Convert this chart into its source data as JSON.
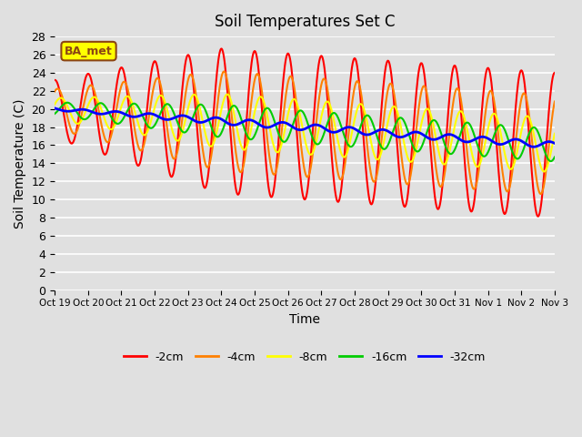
{
  "title": "Soil Temperatures Set C",
  "xlabel": "Time",
  "ylabel": "Soil Temperature (C)",
  "ylim": [
    0,
    28
  ],
  "yticks": [
    0,
    2,
    4,
    6,
    8,
    10,
    12,
    14,
    16,
    18,
    20,
    22,
    24,
    26,
    28
  ],
  "xtick_labels": [
    "Oct 19",
    "Oct 20",
    "Oct 21",
    "Oct 22",
    "Oct 23",
    "Oct 24",
    "Oct 25",
    "Oct 26",
    "Oct 27",
    "Oct 28",
    "Oct 29",
    "Oct 30",
    "Oct 31",
    "Nov 1",
    "Nov 2",
    "Nov 3"
  ],
  "legend_labels": [
    "-2cm",
    "-4cm",
    "-8cm",
    "-16cm",
    "-32cm"
  ],
  "legend_colors": [
    "#ff0000",
    "#ff8000",
    "#ffff00",
    "#00cc00",
    "#0000ff"
  ],
  "line_widths": [
    1.5,
    1.5,
    1.5,
    1.5,
    2.0
  ],
  "annotation_text": "BA_met",
  "annotation_bg": "#ffff00",
  "annotation_border": "#8B4513",
  "background_color": "#e0e0e0",
  "plot_bg_color": "#e0e0e0",
  "grid_color": "#ffffff",
  "n_points_per_day": 48,
  "n_days": 16
}
